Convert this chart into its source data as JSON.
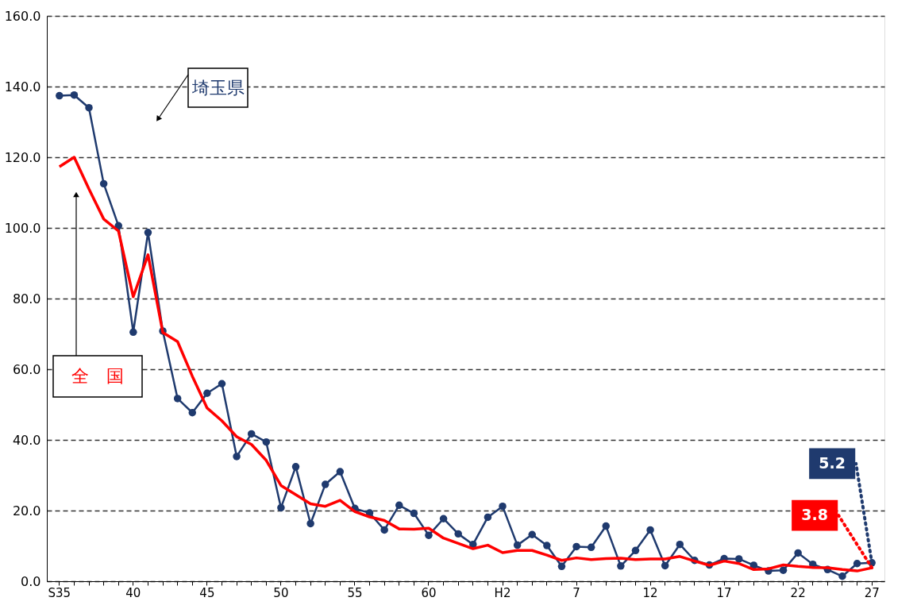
{
  "chart_data": {
    "type": "line",
    "categories": [
      "S35",
      null,
      null,
      null,
      null,
      "40",
      null,
      null,
      null,
      null,
      "45",
      null,
      null,
      null,
      null,
      "50",
      null,
      null,
      null,
      null,
      "55",
      null,
      null,
      null,
      null,
      "60",
      null,
      null,
      null,
      null,
      "H2",
      null,
      null,
      null,
      null,
      "7",
      null,
      null,
      null,
      null,
      "12",
      null,
      null,
      null,
      null,
      "17",
      null,
      null,
      null,
      null,
      "22",
      null,
      null,
      null,
      null,
      "27"
    ],
    "series": [
      {
        "name": "埼玉県",
        "color": "#1f3a6e",
        "marker": "circle",
        "values": [
          137.4,
          137.6,
          134.0,
          112.5,
          100.6,
          70.5,
          98.7,
          70.8,
          51.7,
          47.7,
          53.2,
          55.9,
          35.3,
          41.7,
          39.4,
          20.8,
          32.4,
          16.3,
          27.4,
          31.0,
          20.6,
          19.3,
          14.5,
          21.5,
          19.2,
          13.0,
          17.7,
          13.4,
          10.4,
          18.1,
          21.2,
          10.2,
          13.2,
          10.1,
          4.2,
          9.8,
          9.6,
          15.6,
          4.3,
          8.7,
          14.5,
          4.4,
          10.4,
          5.9,
          4.6,
          6.4,
          6.3,
          4.5,
          2.9,
          3.1,
          8.0,
          4.8,
          3.3,
          1.4,
          5.0,
          5.2
        ],
        "value_labels": [
          null,
          null,
          null,
          null,
          null,
          null,
          null,
          null,
          null,
          null,
          null,
          null,
          null,
          null,
          null,
          null,
          null,
          null,
          null,
          null,
          null,
          null,
          null,
          null,
          null,
          null,
          null,
          null,
          null,
          null,
          null,
          null,
          null,
          null,
          null,
          null,
          null,
          null,
          null,
          null,
          null,
          null,
          null,
          null,
          null,
          null,
          null,
          null,
          null,
          null,
          null,
          null,
          null,
          null,
          null,
          "5.2"
        ]
      },
      {
        "name": "全　国",
        "color": "#ff0000",
        "marker": "none",
        "values": [
          117.3,
          120.0,
          111.0,
          102.5,
          99.1,
          80.5,
          92.4,
          70.4,
          67.8,
          58.0,
          49.0,
          45.4,
          40.9,
          38.7,
          34.2,
          27.1,
          24.5,
          21.9,
          21.2,
          22.9,
          19.7,
          18.2,
          17.2,
          14.8,
          14.7,
          15.0,
          12.2,
          10.7,
          9.2,
          10.2,
          8.1,
          8.7,
          8.7,
          7.4,
          5.9,
          6.6,
          6.1,
          6.4,
          6.5,
          6.1,
          6.3,
          6.3,
          7.0,
          5.7,
          4.5,
          5.7,
          5.0,
          3.3,
          3.5,
          4.6,
          4.2,
          3.9,
          3.8,
          3.3,
          2.9,
          3.8
        ],
        "value_labels": [
          null,
          null,
          null,
          null,
          null,
          null,
          null,
          null,
          null,
          null,
          null,
          null,
          null,
          null,
          null,
          null,
          null,
          null,
          null,
          null,
          null,
          null,
          null,
          null,
          null,
          null,
          null,
          null,
          null,
          null,
          null,
          null,
          null,
          null,
          null,
          null,
          null,
          null,
          null,
          null,
          null,
          null,
          null,
          null,
          null,
          null,
          null,
          null,
          null,
          null,
          null,
          null,
          null,
          null,
          null,
          "3.8"
        ]
      }
    ],
    "ylim": [
      0,
      160
    ],
    "yticks": [
      {
        "value": 0,
        "label": "0.0"
      },
      {
        "value": 20,
        "label": "20.0"
      },
      {
        "value": 40,
        "label": "40.0"
      },
      {
        "value": 60,
        "label": "60.0"
      },
      {
        "value": 80,
        "label": "80.0"
      },
      {
        "value": 100,
        "label": "100.0"
      },
      {
        "value": 120,
        "label": "120.0"
      },
      {
        "value": 140,
        "label": "140.0"
      },
      {
        "value": 160,
        "label": "160.0"
      }
    ],
    "grid": "y",
    "line_style": "solid"
  }
}
